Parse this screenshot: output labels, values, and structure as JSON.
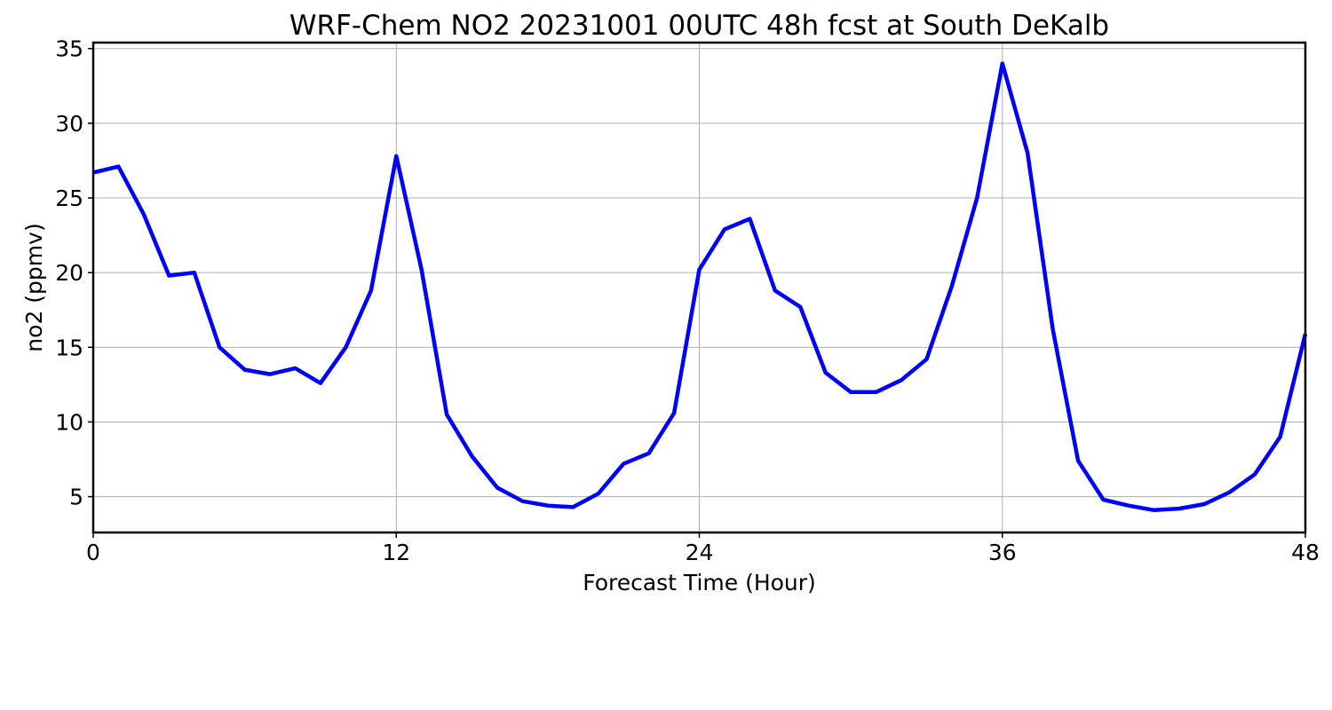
{
  "chart_data": {
    "type": "line",
    "title": "WRF-Chem NO2  20231001 00UTC 48h fcst at South DeKalb",
    "xlabel": "Forecast Time (Hour)",
    "ylabel": "no2  (ppmv)",
    "xlim": [
      0,
      48
    ],
    "ylim": [
      2.6,
      35.4
    ],
    "xticks": [
      0,
      12,
      24,
      36,
      48
    ],
    "yticks": [
      5,
      10,
      15,
      20,
      25,
      30,
      35
    ],
    "grid": true,
    "series": [
      {
        "color": "#0000ff",
        "x": [
          0,
          1,
          2,
          3,
          4,
          5,
          6,
          7,
          8,
          9,
          10,
          11,
          12,
          13,
          14,
          15,
          16,
          17,
          18,
          19,
          20,
          21,
          22,
          23,
          24,
          25,
          26,
          27,
          28,
          29,
          30,
          31,
          32,
          33,
          34,
          35,
          36,
          37,
          38,
          39,
          40,
          41,
          42,
          43,
          44,
          45,
          46,
          47,
          48
        ],
        "values": [
          26.7,
          27.1,
          23.9,
          19.8,
          20.0,
          15.0,
          13.5,
          13.2,
          13.6,
          12.6,
          15.0,
          18.8,
          27.8,
          20.2,
          10.5,
          7.7,
          5.6,
          4.7,
          4.4,
          4.3,
          5.2,
          7.2,
          7.9,
          10.6,
          20.2,
          22.9,
          23.6,
          18.8,
          17.7,
          13.3,
          12.0,
          12.0,
          12.8,
          14.2,
          19.1,
          25.0,
          34.0,
          28.0,
          16.2,
          7.4,
          4.8,
          4.4,
          4.1,
          4.2,
          4.5,
          5.3,
          6.5,
          9.0,
          15.9
        ]
      }
    ]
  }
}
